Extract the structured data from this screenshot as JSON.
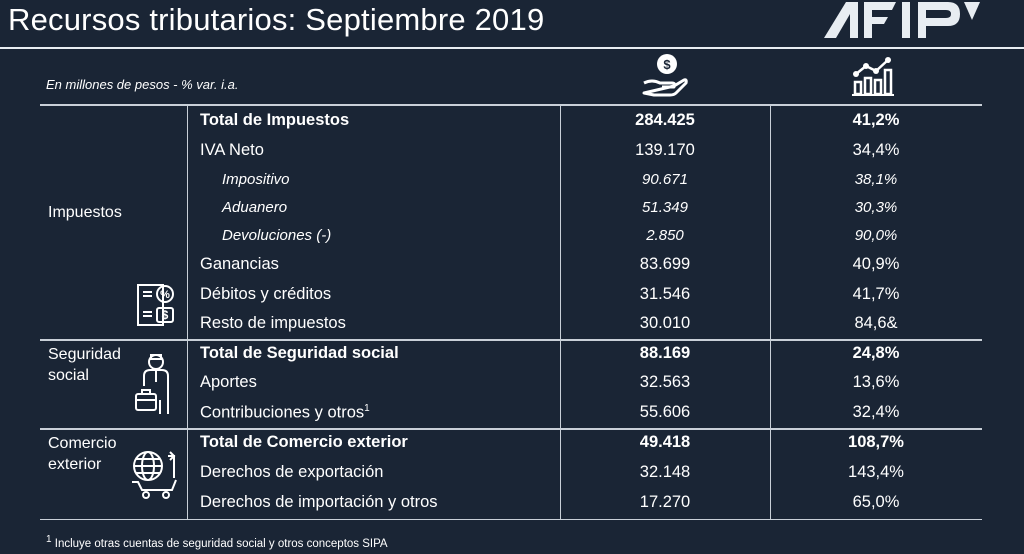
{
  "title": "Recursos tributarios: Septiembre 2019",
  "logo_text": "AFIP",
  "units": "En millones de pesos - % var. i.a.",
  "header_icons": [
    "money-hand-icon",
    "growth-chart-icon"
  ],
  "categories": {
    "impuestos": "Impuestos",
    "seguridad": [
      "Seguridad",
      "social"
    ],
    "comercio": [
      "Comercio",
      "exterior"
    ]
  },
  "rows": [
    {
      "label": "Total de Impuestos",
      "value": "284.425",
      "var": "41,2%"
    },
    {
      "label": "IVA Neto",
      "value": "139.170",
      "var": "34,4%"
    },
    {
      "label": "Impositivo",
      "value": "90.671",
      "var": "38,1%"
    },
    {
      "label": "Aduanero",
      "value": "51.349",
      "var": "30,3%"
    },
    {
      "label": "Devoluciones (-)",
      "value": "2.850",
      "var": "90,0%"
    },
    {
      "label": "Ganancias",
      "value": "83.699",
      "var": "40,9%"
    },
    {
      "label": "Débitos y créditos",
      "value": "31.546",
      "var": "41,7%"
    },
    {
      "label": "Resto de impuestos",
      "value": "30.010",
      "var": "84,6&"
    },
    {
      "label": "Total de Seguridad social",
      "value": "88.169",
      "var": "24,8%"
    },
    {
      "label": "Aportes",
      "value": "32.563",
      "var": "13,6%"
    },
    {
      "label": "Contribuciones y otros",
      "sup": "1",
      "value": "55.606",
      "var": "32,4%"
    },
    {
      "label": "Total de Comercio exterior",
      "value": "49.418",
      "var": "108,7%"
    },
    {
      "label": "Derechos de exportación",
      "value": "32.148",
      "var": "143,4%"
    },
    {
      "label": "Derechos de importación y otros",
      "value": "17.270",
      "var": "65,0%"
    }
  ],
  "footnote": {
    "sup": "1",
    "text": " Incluye otras cuentas de seguridad social y otros conceptos SIPA"
  },
  "colors": {
    "background": "#1a2535",
    "text": "#ffffff",
    "rule": "#c9d0d8"
  }
}
